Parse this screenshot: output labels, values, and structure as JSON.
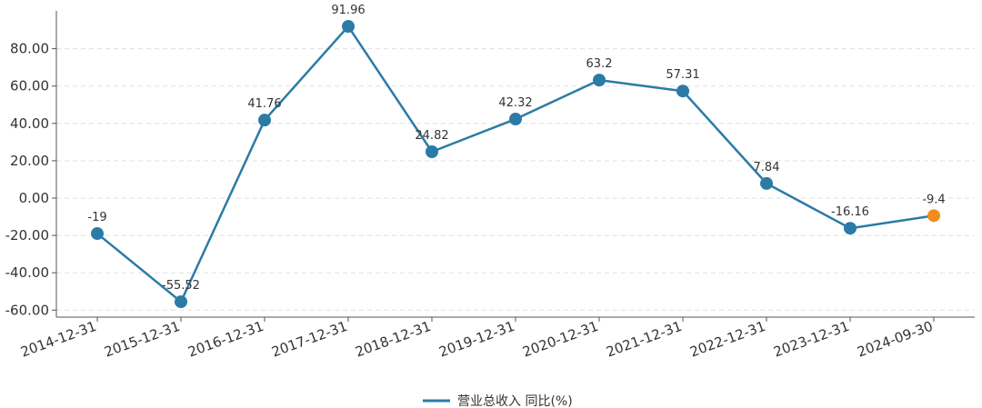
{
  "chart_data": {
    "type": "line",
    "categories": [
      "2014-12-31",
      "2015-12-31",
      "2016-12-31",
      "2017-12-31",
      "2018-12-31",
      "2019-12-31",
      "2020-12-31",
      "2021-12-31",
      "2022-12-31",
      "2023-12-31",
      "2024-09-30"
    ],
    "series": [
      {
        "name": "营业总收入 同比(%)",
        "values": [
          -19,
          -55.52,
          41.76,
          91.96,
          24.82,
          42.32,
          63.2,
          57.31,
          7.84,
          -16.16,
          -9.4
        ],
        "data_labels": [
          "-19",
          "-55.52",
          "41.76",
          "91.96",
          "24.82",
          "42.32",
          "63.2",
          "57.31",
          "7.84",
          "-16.16",
          "-9.4"
        ],
        "color": "#2b7ba6",
        "highlight_color": "#f28c1e",
        "highlight_index": 10
      }
    ],
    "yticks": [
      -60,
      -40,
      -20,
      0,
      20,
      40,
      60,
      80
    ],
    "ytick_labels": [
      "-60.00",
      "-40.00",
      "-20.00",
      "0.00",
      "20.00",
      "40.00",
      "60.00",
      "80.00"
    ],
    "ylim": [
      -62,
      98
    ],
    "grid": true,
    "grid_color": "#e0e0e0",
    "legend_position": "bottom-center"
  }
}
